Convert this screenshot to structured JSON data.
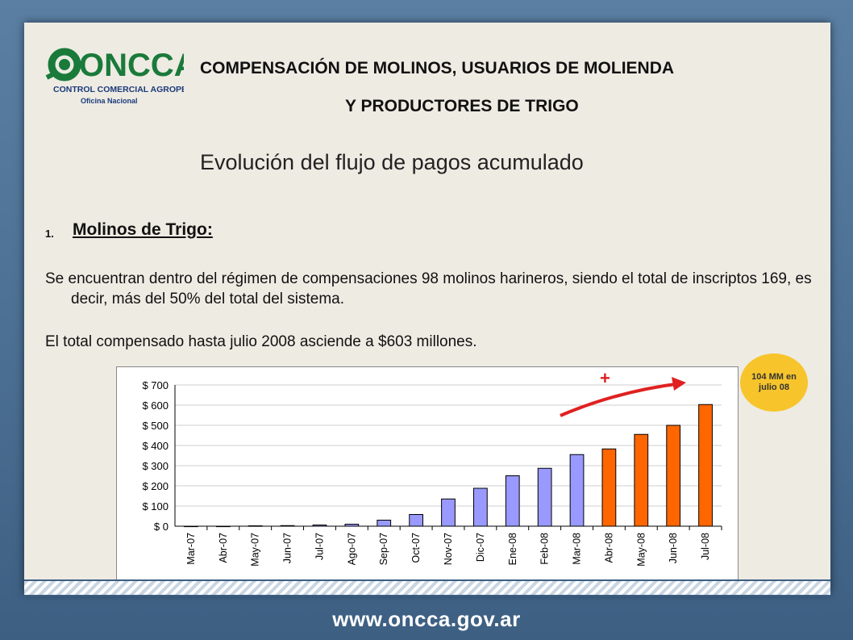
{
  "header": {
    "logo_text": "ONCCA",
    "logo_subtitle": "CONTROL COMERCIAL AGROPECUARIO",
    "logo_office": "Oficina Nacional",
    "title_line1": "COMPENSACIÓN DE MOLINOS, USUARIOS DE MOLIENDA",
    "title_line2": "Y PRODUCTORES DE TRIGO",
    "subtitle": "Evolución del flujo de pagos acumulado"
  },
  "section": {
    "number": "1.",
    "heading": "Molinos de Trigo:",
    "paragraph1": "Se encuentran dentro del régimen de compensaciones 98 molinos harineros, siendo el total de inscriptos 169, es decir, más del 50% del total del sistema.",
    "paragraph2": "El total compensado hasta julio 2008 asciende a $603 millones."
  },
  "callout": {
    "text": "104 MM en julio 08",
    "color": "#f7c52b"
  },
  "annotation": {
    "plus": "+",
    "arrow_color": "#e02020"
  },
  "footer": {
    "url": "www.oncca.gov.ar"
  },
  "colors": {
    "bar_before": "#9999ff",
    "bar_after": "#ff6600",
    "accent_logo": "#1a7a3a"
  },
  "chart_data": {
    "type": "bar",
    "categories": [
      "Mar-07",
      "Abr-07",
      "May-07",
      "Jun-07",
      "Jul-07",
      "Ago-07",
      "Sep-07",
      "Oct-07",
      "Nov-07",
      "Dic-07",
      "Ene-08",
      "Feb-08",
      "Mar-08",
      "Abr-08",
      "May-08",
      "Jun-08",
      "Jul-08"
    ],
    "values": [
      0,
      0,
      2,
      3,
      6,
      10,
      30,
      58,
      135,
      188,
      250,
      287,
      355,
      383,
      455,
      500,
      603
    ],
    "highlight_from_index": 13,
    "ylim": [
      0,
      700
    ],
    "yticks": [
      "$ 0",
      "$ 100",
      "$ 200",
      "$ 300",
      "$ 400",
      "$ 500",
      "$ 600",
      "$ 700"
    ],
    "ytick_values": [
      0,
      100,
      200,
      300,
      400,
      500,
      600,
      700
    ],
    "title": "",
    "xlabel": "",
    "ylabel": "",
    "grid": true
  }
}
